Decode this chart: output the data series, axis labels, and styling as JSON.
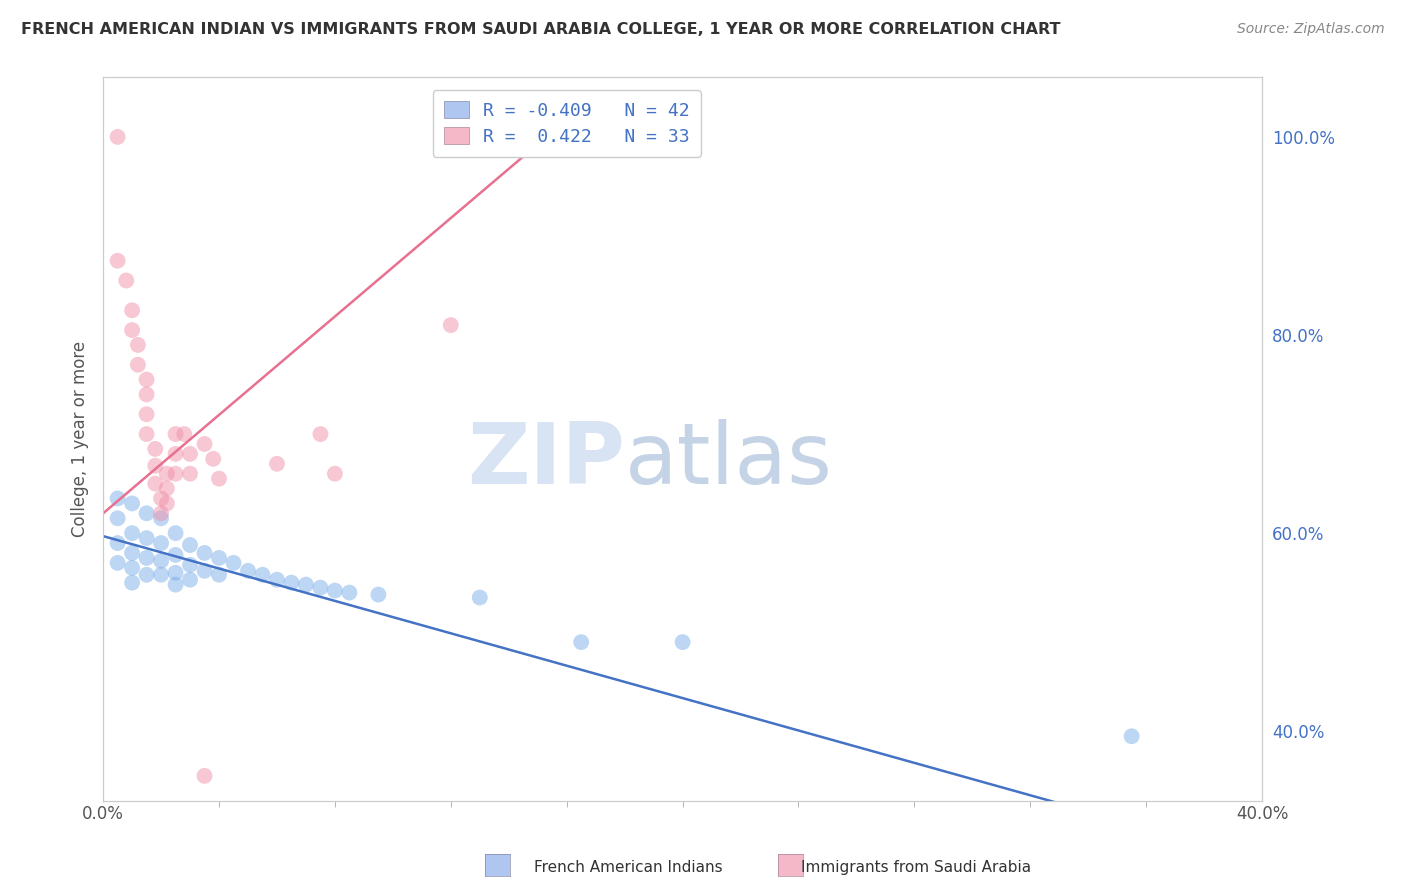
{
  "title": "FRENCH AMERICAN INDIAN VS IMMIGRANTS FROM SAUDI ARABIA COLLEGE, 1 YEAR OR MORE CORRELATION CHART",
  "source": "Source: ZipAtlas.com",
  "ylabel": "College, 1 year or more",
  "xmin": 0.0,
  "xmax": 0.4,
  "ymin": 0.33,
  "ymax": 1.06,
  "right_yticks": [
    0.4,
    0.6,
    0.8,
    1.0
  ],
  "right_yticklabels": [
    "40.0%",
    "60.0%",
    "80.0%",
    "100.0%"
  ],
  "xticks": [
    0.0,
    0.4
  ],
  "xticklabels": [
    "0.0%",
    "40.0%"
  ],
  "legend_entries": [
    {
      "color": "#aec6f0",
      "label": "R = -0.409   N = 42"
    },
    {
      "color": "#f4b8c8",
      "label": "R =  0.422   N = 33"
    }
  ],
  "blue_dots": [
    [
      0.005,
      0.635
    ],
    [
      0.005,
      0.615
    ],
    [
      0.005,
      0.59
    ],
    [
      0.005,
      0.57
    ],
    [
      0.01,
      0.63
    ],
    [
      0.01,
      0.6
    ],
    [
      0.01,
      0.58
    ],
    [
      0.01,
      0.565
    ],
    [
      0.01,
      0.55
    ],
    [
      0.015,
      0.62
    ],
    [
      0.015,
      0.595
    ],
    [
      0.015,
      0.575
    ],
    [
      0.015,
      0.558
    ],
    [
      0.02,
      0.615
    ],
    [
      0.02,
      0.59
    ],
    [
      0.02,
      0.572
    ],
    [
      0.02,
      0.558
    ],
    [
      0.025,
      0.6
    ],
    [
      0.025,
      0.578
    ],
    [
      0.025,
      0.56
    ],
    [
      0.025,
      0.548
    ],
    [
      0.03,
      0.588
    ],
    [
      0.03,
      0.568
    ],
    [
      0.03,
      0.553
    ],
    [
      0.035,
      0.58
    ],
    [
      0.035,
      0.562
    ],
    [
      0.04,
      0.575
    ],
    [
      0.04,
      0.558
    ],
    [
      0.045,
      0.57
    ],
    [
      0.05,
      0.562
    ],
    [
      0.055,
      0.558
    ],
    [
      0.06,
      0.553
    ],
    [
      0.065,
      0.55
    ],
    [
      0.07,
      0.548
    ],
    [
      0.075,
      0.545
    ],
    [
      0.08,
      0.542
    ],
    [
      0.085,
      0.54
    ],
    [
      0.095,
      0.538
    ],
    [
      0.13,
      0.535
    ],
    [
      0.165,
      0.49
    ],
    [
      0.2,
      0.49
    ],
    [
      0.355,
      0.395
    ]
  ],
  "pink_dots": [
    [
      0.005,
      1.0
    ],
    [
      0.005,
      0.875
    ],
    [
      0.008,
      0.855
    ],
    [
      0.01,
      0.825
    ],
    [
      0.01,
      0.805
    ],
    [
      0.012,
      0.79
    ],
    [
      0.012,
      0.77
    ],
    [
      0.015,
      0.755
    ],
    [
      0.015,
      0.74
    ],
    [
      0.015,
      0.72
    ],
    [
      0.015,
      0.7
    ],
    [
      0.018,
      0.685
    ],
    [
      0.018,
      0.668
    ],
    [
      0.018,
      0.65
    ],
    [
      0.02,
      0.635
    ],
    [
      0.02,
      0.62
    ],
    [
      0.022,
      0.66
    ],
    [
      0.022,
      0.645
    ],
    [
      0.022,
      0.63
    ],
    [
      0.025,
      0.7
    ],
    [
      0.025,
      0.68
    ],
    [
      0.025,
      0.66
    ],
    [
      0.028,
      0.7
    ],
    [
      0.03,
      0.68
    ],
    [
      0.03,
      0.66
    ],
    [
      0.035,
      0.69
    ],
    [
      0.038,
      0.675
    ],
    [
      0.04,
      0.655
    ],
    [
      0.06,
      0.67
    ],
    [
      0.075,
      0.7
    ],
    [
      0.08,
      0.66
    ],
    [
      0.12,
      0.81
    ],
    [
      0.035,
      0.355
    ]
  ],
  "blue_line": {
    "x": [
      0.0,
      0.4
    ],
    "y": [
      0.597,
      0.27
    ]
  },
  "pink_line": {
    "x": [
      0.0,
      0.155
    ],
    "y": [
      0.62,
      1.005
    ]
  },
  "watermark_zip": "ZIP",
  "watermark_atlas": "atlas",
  "dot_size": 130,
  "dot_alpha": 0.5,
  "blue_dot_color": "#7aaee8",
  "pink_dot_color": "#f090a8",
  "blue_line_color": "#4472c4",
  "pink_line_color": "#e87090",
  "grid_color": "#c8d4e8",
  "background_color": "#ffffff",
  "legend_patch_blue": "#aec6f0",
  "legend_patch_pink": "#f4b8c8"
}
